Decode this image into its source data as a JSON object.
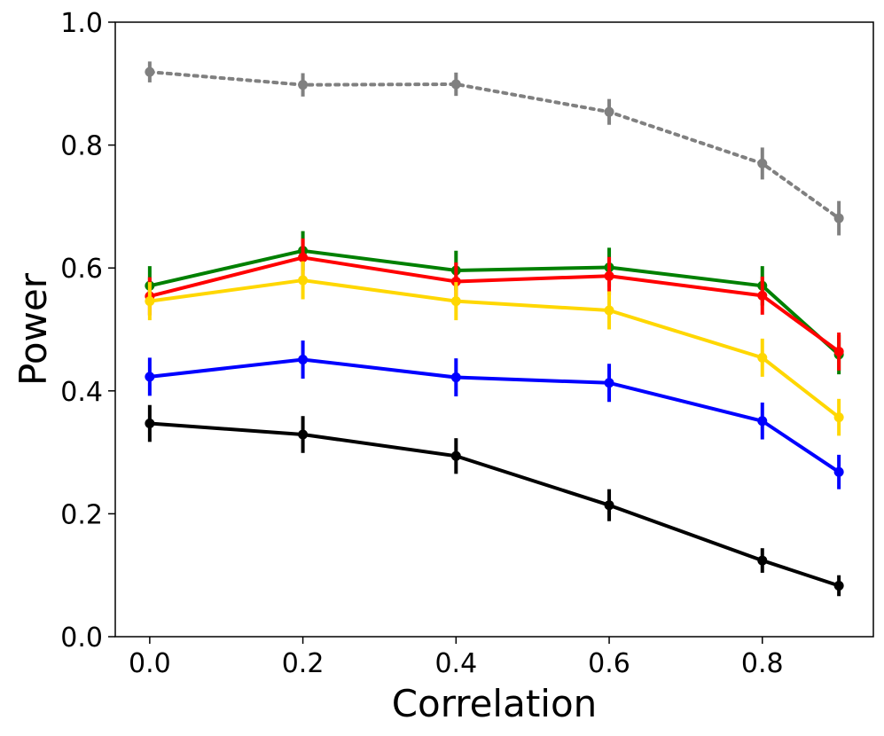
{
  "chart_data": {
    "type": "line",
    "title": "",
    "xlabel": "Correlation",
    "ylabel": "Power",
    "xlim": [
      -0.045,
      0.945
    ],
    "ylim": [
      0.0,
      1.0
    ],
    "xticks": [
      0.0,
      0.2,
      0.4,
      0.6,
      0.8
    ],
    "xtick_labels": [
      "0.0",
      "0.2",
      "0.4",
      "0.6",
      "0.8"
    ],
    "yticks": [
      0.0,
      0.2,
      0.4,
      0.6,
      0.8,
      1.0
    ],
    "ytick_labels": [
      "0.0",
      "0.2",
      "0.4",
      "0.6",
      "0.8",
      "1.0"
    ],
    "grid": false,
    "x": [
      0.0,
      0.2,
      0.4,
      0.6,
      0.8,
      0.9
    ],
    "series": [
      {
        "name": "gray-dotted",
        "color": "#808080",
        "style": "dotted",
        "values": [
          0.919,
          0.898,
          0.899,
          0.854,
          0.77,
          0.681
        ],
        "errors": [
          0.017,
          0.019,
          0.019,
          0.021,
          0.026,
          0.028
        ]
      },
      {
        "name": "green",
        "color": "#008000",
        "style": "solid",
        "values": [
          0.571,
          0.628,
          0.596,
          0.601,
          0.571,
          0.459
        ],
        "errors": [
          0.032,
          0.032,
          0.032,
          0.032,
          0.032,
          0.032
        ]
      },
      {
        "name": "red",
        "color": "#ff0000",
        "style": "solid",
        "values": [
          0.554,
          0.617,
          0.578,
          0.587,
          0.555,
          0.464
        ],
        "errors": [
          0.031,
          0.031,
          0.031,
          0.031,
          0.031,
          0.031
        ]
      },
      {
        "name": "gold",
        "color": "#ffd700",
        "style": "solid",
        "values": [
          0.546,
          0.58,
          0.546,
          0.531,
          0.454,
          0.357
        ],
        "errors": [
          0.031,
          0.031,
          0.031,
          0.031,
          0.031,
          0.03
        ]
      },
      {
        "name": "blue",
        "color": "#0000ff",
        "style": "solid",
        "values": [
          0.423,
          0.451,
          0.422,
          0.413,
          0.351,
          0.268
        ],
        "errors": [
          0.031,
          0.031,
          0.031,
          0.031,
          0.03,
          0.028
        ]
      },
      {
        "name": "black",
        "color": "#000000",
        "style": "solid",
        "values": [
          0.347,
          0.329,
          0.294,
          0.214,
          0.124,
          0.083
        ],
        "errors": [
          0.03,
          0.03,
          0.029,
          0.026,
          0.02,
          0.017
        ]
      }
    ]
  }
}
